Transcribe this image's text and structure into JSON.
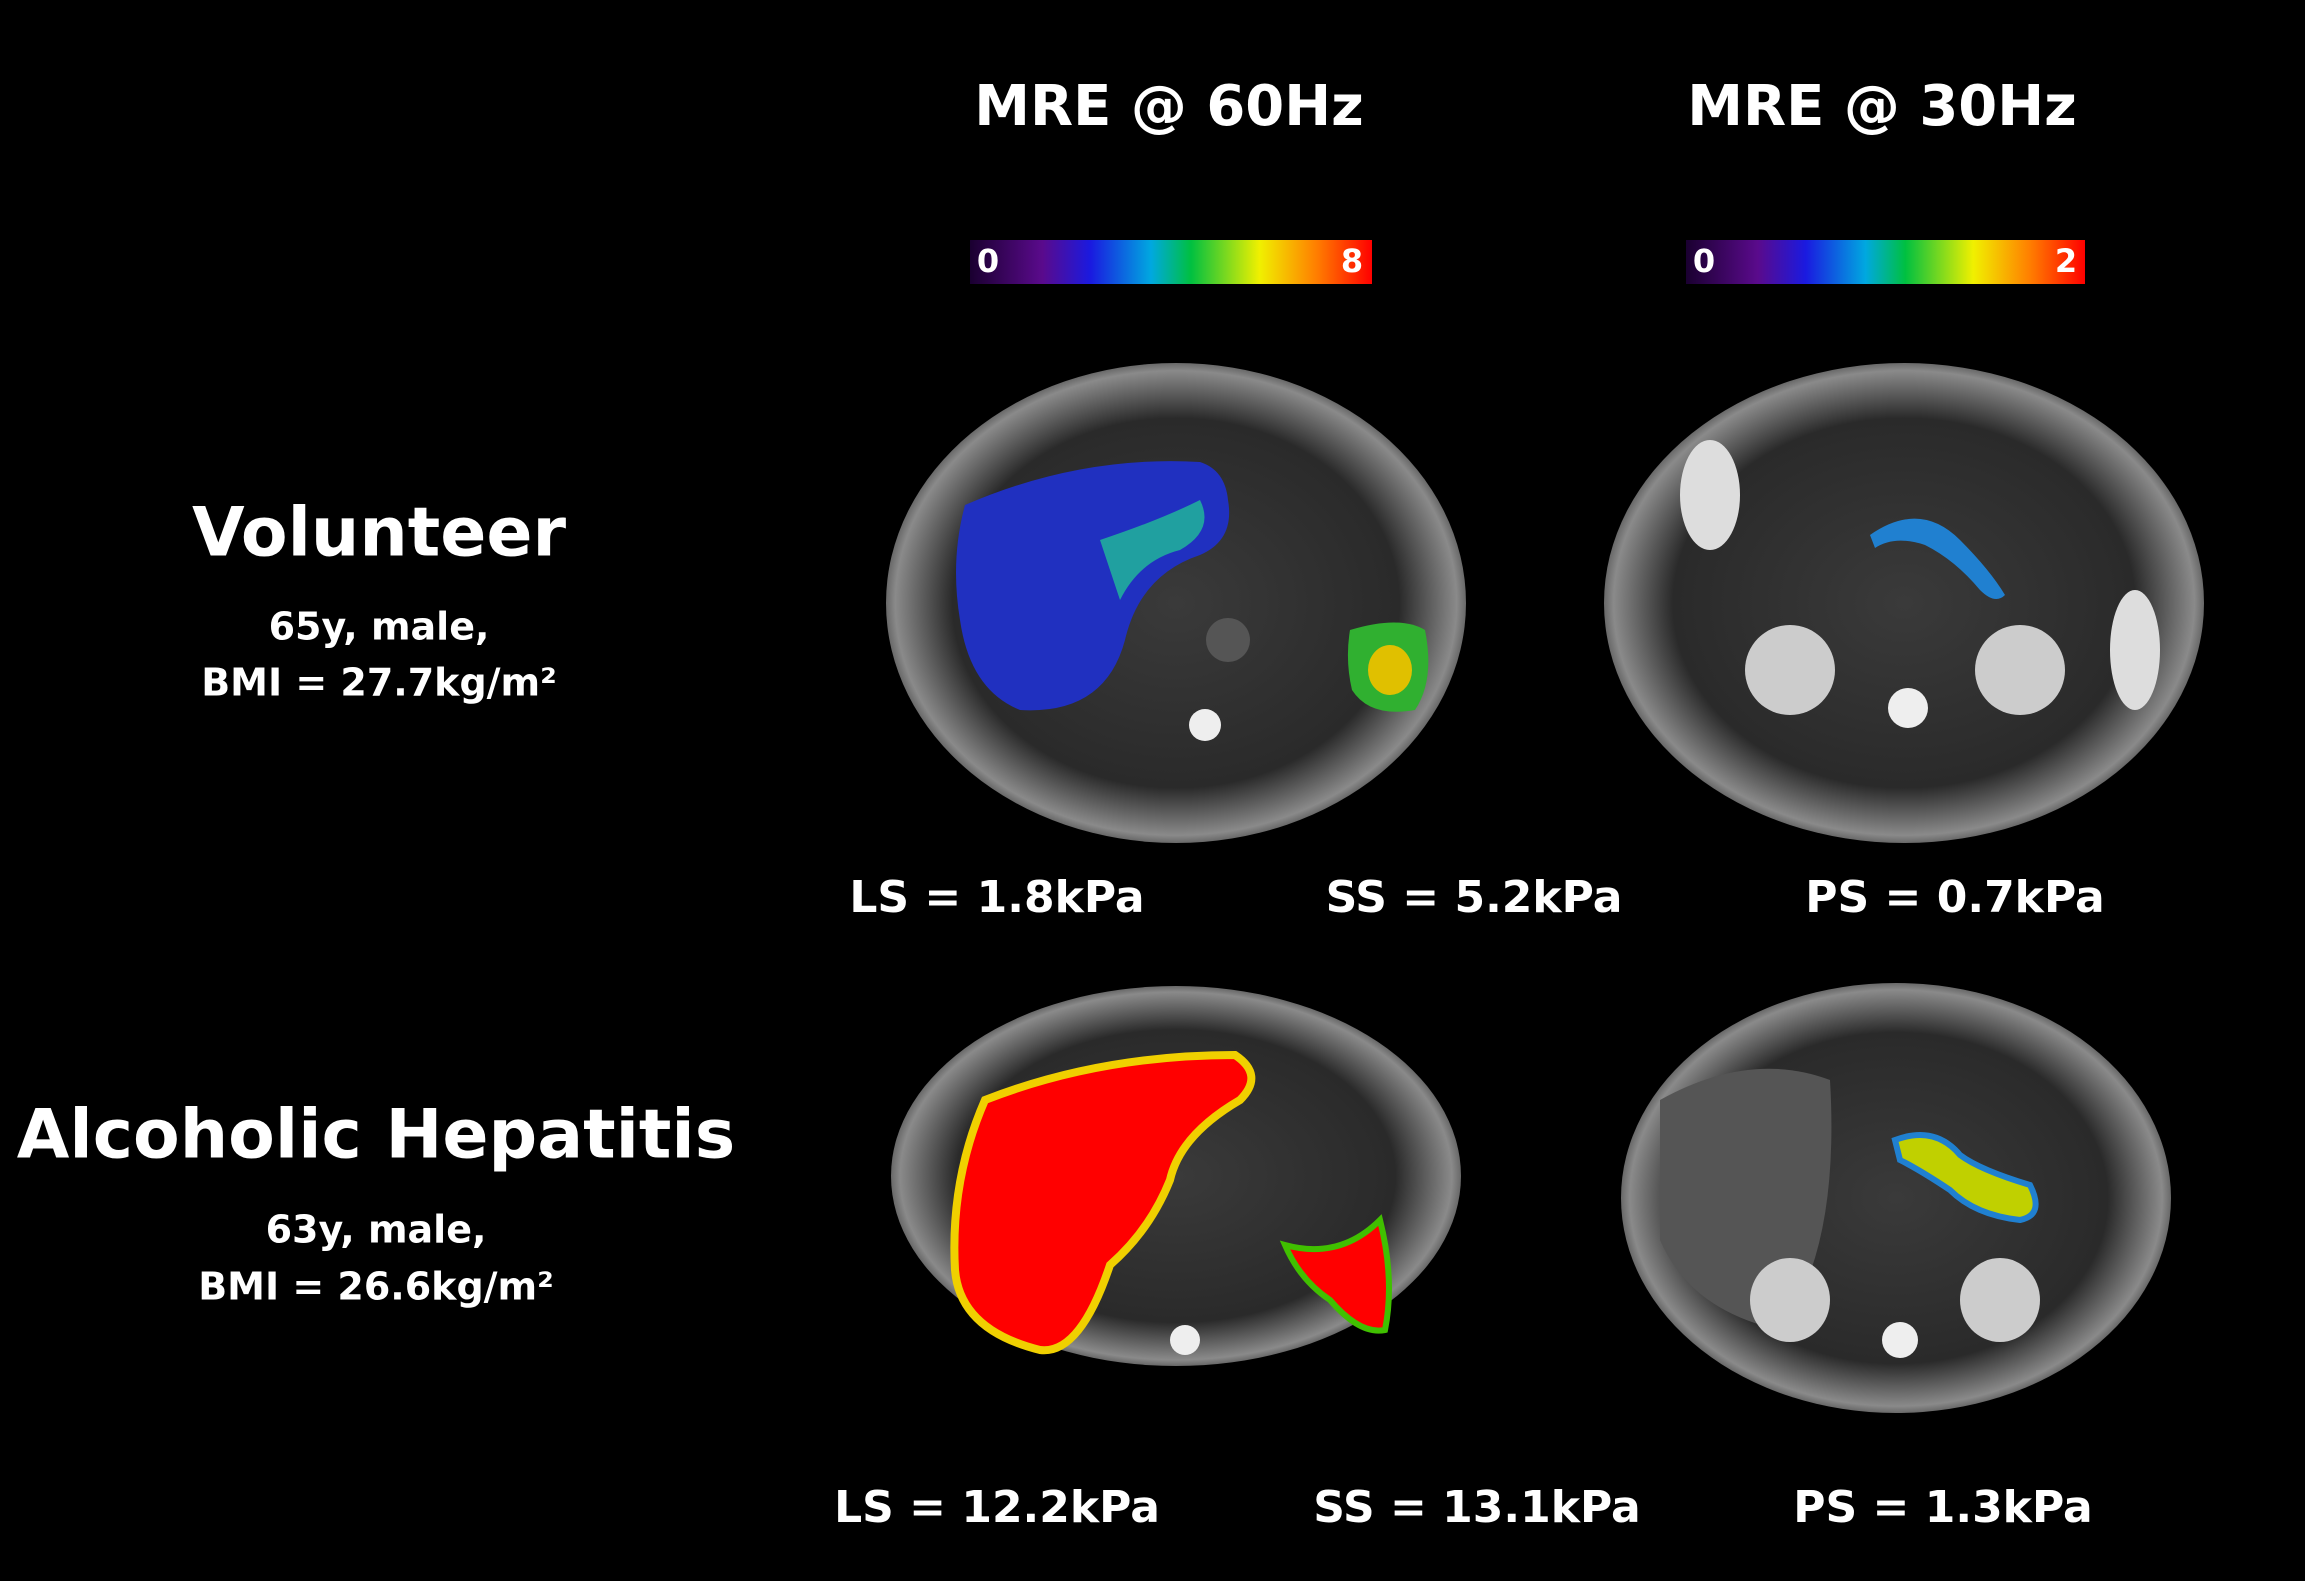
{
  "columns": [
    {
      "title": "MRE @ 60Hz",
      "colorbar": {
        "min": "0",
        "max": "8"
      }
    },
    {
      "title": "MRE @ 30Hz",
      "colorbar": {
        "min": "0",
        "max": "2"
      }
    }
  ],
  "rows": [
    {
      "label": "Volunteer",
      "details": [
        "65y, male,",
        "BMI = 27.7kg/m²"
      ],
      "measurements": [
        "LS = 1.8kPa",
        "SS = 5.2kPa",
        "PS = 0.7kPa"
      ]
    },
    {
      "label": "Alcoholic Hepatitis",
      "details": [
        "63y, male,",
        "BMI = 26.6kg/m²"
      ],
      "measurements": [
        "LS = 12.2kPa",
        "SS = 13.1kPa",
        "PS = 1.3kPa"
      ]
    }
  ]
}
